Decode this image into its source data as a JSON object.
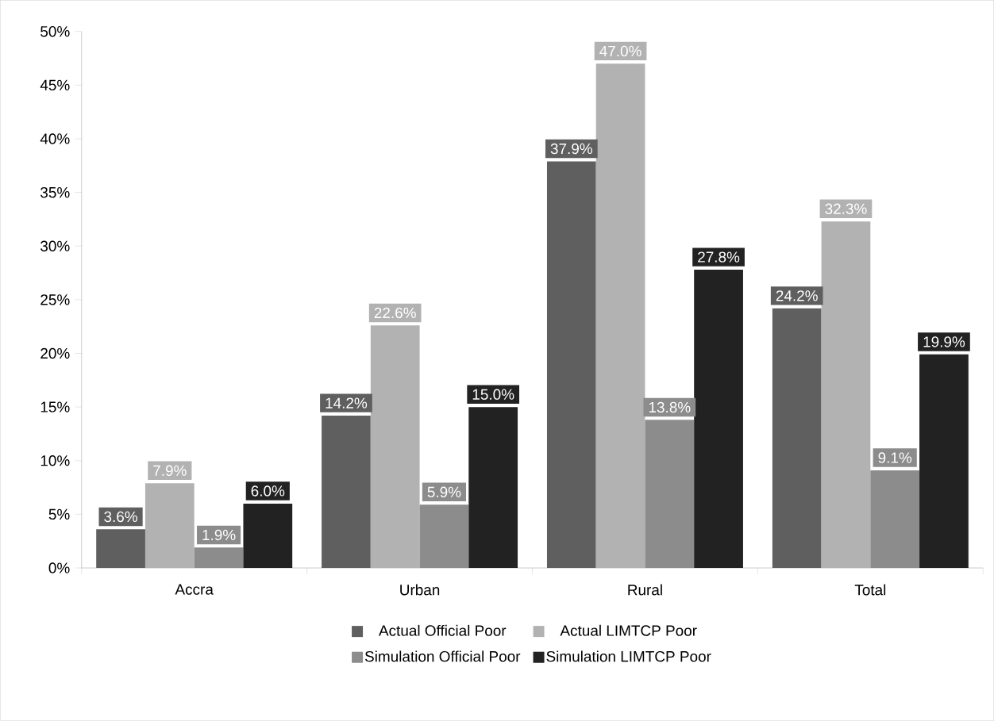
{
  "chart_data": {
    "type": "bar",
    "categories": [
      "Accra",
      "Urban",
      "Rural",
      "Total"
    ],
    "series": [
      {
        "name": "Actual Official Poor",
        "color": "#5f5f5f",
        "values": [
          3.6,
          14.2,
          37.9,
          24.2
        ],
        "value_labels": [
          "3.6%",
          "14.2%",
          "37.9%",
          "24.2%"
        ]
      },
      {
        "name": "Actual LIMTCP Poor",
        "color": "#b2b2b2",
        "values": [
          7.9,
          22.6,
          47.0,
          32.3
        ],
        "value_labels": [
          "7.9%",
          "22.6%",
          "47.0%",
          "32.3%"
        ]
      },
      {
        "name": "Simulation Official Poor",
        "color": "#8c8c8c",
        "values": [
          1.9,
          5.9,
          13.8,
          9.1
        ],
        "value_labels": [
          "1.9%",
          "5.9%",
          "13.8%",
          "9.1%"
        ]
      },
      {
        "name": "Simulation LIMTCP Poor",
        "color": "#222222",
        "values": [
          6.0,
          15.0,
          27.8,
          19.9
        ],
        "value_labels": [
          "6.0%",
          "15.0%",
          "27.8%",
          "19.9%"
        ]
      }
    ],
    "ylim": [
      0,
      50
    ],
    "yticks": [
      {
        "value": 0,
        "label": "0%"
      },
      {
        "value": 5,
        "label": "5%"
      },
      {
        "value": 10,
        "label": "10%"
      },
      {
        "value": 15,
        "label": "15%"
      },
      {
        "value": 20,
        "label": "20%"
      },
      {
        "value": 25,
        "label": "25%"
      },
      {
        "value": 30,
        "label": "30%"
      },
      {
        "value": 35,
        "label": "35%"
      },
      {
        "value": 40,
        "label": "40%"
      },
      {
        "value": 45,
        "label": "45%"
      },
      {
        "value": 50,
        "label": "50%"
      }
    ],
    "grid": false,
    "legend": "bottom"
  }
}
